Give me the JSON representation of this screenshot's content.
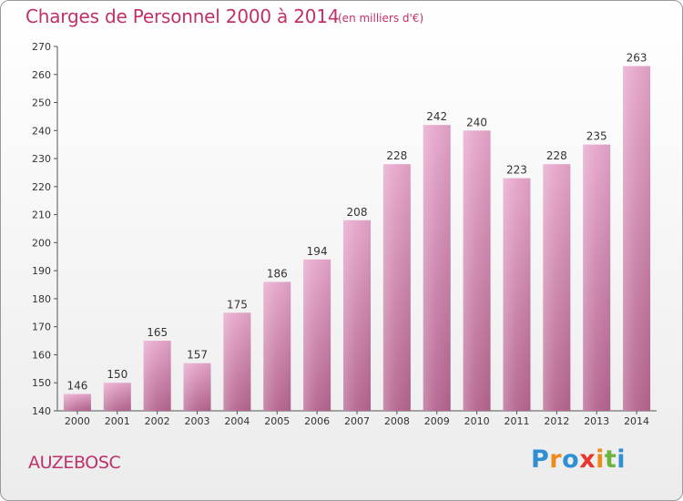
{
  "chart_data": {
    "type": "bar",
    "title": "Charges de Personnel 2000 à 2014",
    "subtitle": "(en milliers d'€)",
    "categories": [
      "2000",
      "2001",
      "2002",
      "2003",
      "2004",
      "2005",
      "2006",
      "2007",
      "2008",
      "2009",
      "2010",
      "2011",
      "2012",
      "2013",
      "2014"
    ],
    "values": [
      146,
      150,
      165,
      157,
      175,
      186,
      194,
      208,
      228,
      242,
      240,
      223,
      228,
      235,
      263
    ],
    "ylim": [
      140,
      270
    ],
    "yticks": [
      140,
      150,
      160,
      170,
      180,
      190,
      200,
      210,
      220,
      230,
      240,
      250,
      260,
      270
    ],
    "grid": false,
    "bar_color": "#d98ab5"
  },
  "location": "AUZEBOSC",
  "brand": "Proxiti"
}
